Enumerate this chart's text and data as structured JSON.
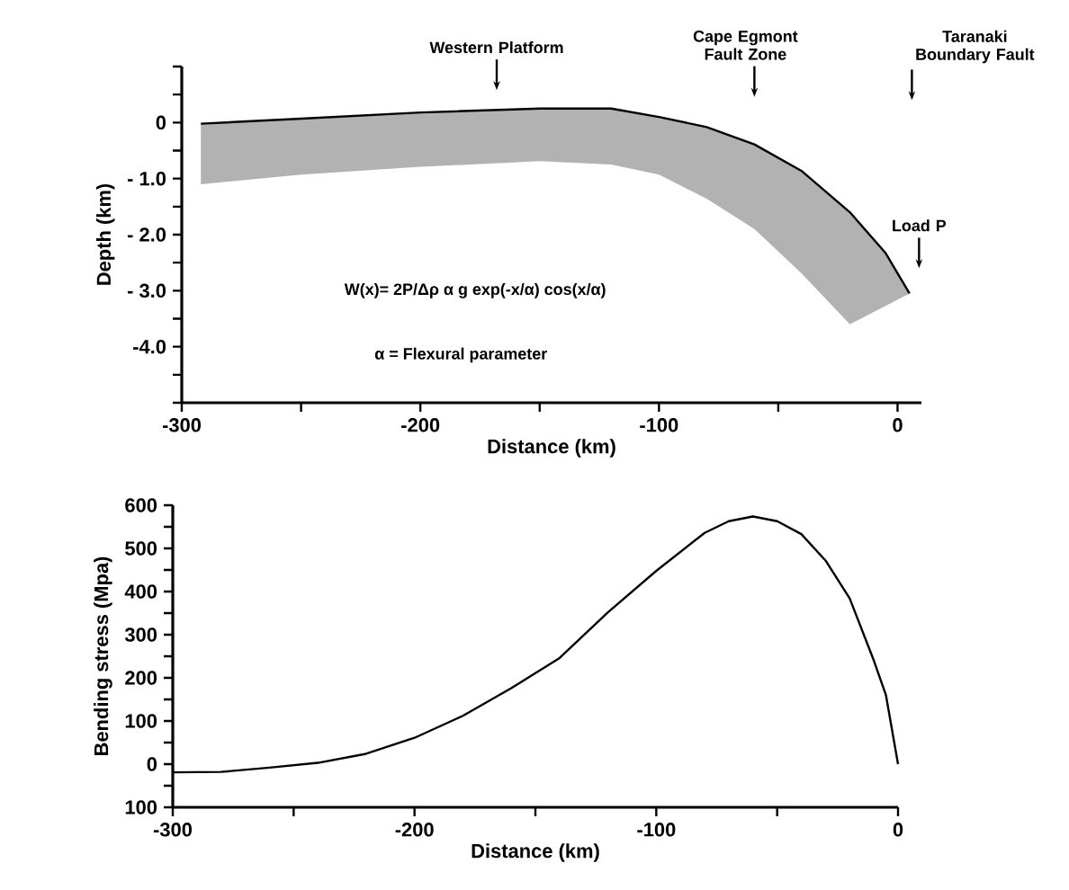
{
  "chart_data": [
    {
      "type": "line",
      "xlabel": "Distance (km)",
      "ylabel": "Depth (km)",
      "x": [
        -292,
        -250,
        -200,
        -150,
        -120,
        -100,
        -80,
        -60,
        -40,
        -20,
        -5,
        5
      ],
      "series": [
        {
          "color": "#000000",
          "values": [
            -0.02,
            0.07,
            0.18,
            0.25,
            0.25,
            0.1,
            -0.08,
            -0.39,
            -0.87,
            -1.6,
            -2.33,
            -3.05
          ],
          "lower": [
            -1.1,
            -0.93,
            -0.79,
            -0.69,
            -0.75,
            -0.93,
            -1.36,
            -1.9,
            -2.7,
            -3.6,
            -3.27,
            -3.05
          ],
          "upper": [
            -0.02,
            0.07,
            0.18,
            0.25,
            0.25,
            0.1,
            -0.08,
            -0.39,
            -0.87,
            -1.6,
            -2.33,
            -3.05
          ]
        }
      ],
      "xlim": [
        -300,
        10
      ],
      "ylim": [
        -5,
        1
      ],
      "xticks": [
        -300,
        {
          "value": -250,
          "label": null
        },
        -200,
        {
          "value": -150,
          "label": null
        },
        -100,
        {
          "value": -50,
          "label": null
        },
        0
      ],
      "yticks": [
        {
          "value": 1,
          "label": null
        },
        {
          "value": 0.5,
          "label": null
        },
        0,
        {
          "value": -0.5,
          "label": null
        },
        {
          "value": -1,
          "label": "- 1.0"
        },
        {
          "value": -1.5,
          "label": null
        },
        {
          "value": -2,
          "label": "- 2.0"
        },
        {
          "value": -2.5,
          "label": null
        },
        {
          "value": -3,
          "label": "- 3.0"
        },
        {
          "value": -3.5,
          "label": null
        },
        {
          "value": -4,
          "label": "-4.0"
        },
        {
          "value": -4.5,
          "label": null
        },
        {
          "value": -5,
          "label": null
        }
      ],
      "annotations": [
        "Western Platform",
        "Cape Egmont Fault Zone",
        "Taranaki Boundary Fault",
        "Load P",
        "W(x)= 2P/Δρ α g exp(-x/α) cos(x/α)",
        "α = Flexural parameter"
      ]
    },
    {
      "type": "line",
      "xlabel": "Distance (km)",
      "ylabel": "Bending stress (Mpa)",
      "x": [
        -300,
        -280,
        -260,
        -240,
        -220,
        -200,
        -180,
        -160,
        -140,
        -120,
        -100,
        -80,
        -70,
        -60,
        -50,
        -40,
        -30,
        -20,
        -10,
        -5,
        0
      ],
      "series": [
        {
          "color": "#000000",
          "values": [
            -19,
            -18,
            -8,
            3,
            24,
            61,
            112,
            176,
            246,
            352,
            448,
            536,
            563,
            574,
            563,
            533,
            472,
            384,
            240,
            160,
            0
          ]
        }
      ],
      "xlim": [
        -300,
        0
      ],
      "ylim": [
        -100,
        600
      ],
      "xticks": [
        -300,
        {
          "value": -250,
          "label": null
        },
        -200,
        {
          "value": -150,
          "label": null
        },
        -100,
        {
          "value": -50,
          "label": null
        },
        0
      ],
      "yticks": [
        {
          "value": -100,
          "label": "100"
        },
        {
          "value": -50,
          "label": null
        },
        0,
        {
          "value": 50,
          "label": null
        },
        100,
        {
          "value": 150,
          "label": null
        },
        200,
        {
          "value": 250,
          "label": null
        },
        300,
        {
          "value": 350,
          "label": null
        },
        400,
        {
          "value": 450,
          "label": null
        },
        500,
        {
          "value": 550,
          "label": null
        },
        600
      ]
    }
  ]
}
